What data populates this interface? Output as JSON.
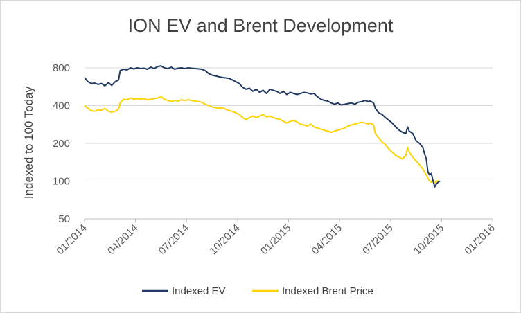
{
  "chart_data": {
    "type": "line",
    "title": "ION EV and Brent Development",
    "ylabel": "Indexed to 100 Today",
    "xlabel": "",
    "y_scale": "log",
    "ylim": [
      50,
      1000
    ],
    "yticks": [
      50,
      100,
      200,
      400,
      800
    ],
    "x_range_months": [
      0,
      24
    ],
    "x_tick_labels": [
      {
        "m": 0,
        "label": "01/2014"
      },
      {
        "m": 3,
        "label": "04/2014"
      },
      {
        "m": 6,
        "label": "07/2014"
      },
      {
        "m": 9,
        "label": "10/2014"
      },
      {
        "m": 12,
        "label": "01/2015"
      },
      {
        "m": 15,
        "label": "04/2015"
      },
      {
        "m": 18,
        "label": "07/2015"
      },
      {
        "m": 21,
        "label": "10/2015"
      },
      {
        "m": 24,
        "label": "01/2016"
      }
    ],
    "x_unit": "months since 01/2014",
    "grid": true,
    "legend_position": "bottom",
    "series": [
      {
        "name": "Indexed EV",
        "color": "#1f3864",
        "points": [
          [
            0.0,
            670
          ],
          [
            0.2,
            620
          ],
          [
            0.4,
            600
          ],
          [
            0.6,
            605
          ],
          [
            0.8,
            590
          ],
          [
            1.0,
            600
          ],
          [
            1.2,
            575
          ],
          [
            1.4,
            610
          ],
          [
            1.6,
            580
          ],
          [
            1.8,
            620
          ],
          [
            2.0,
            640
          ],
          [
            2.1,
            760
          ],
          [
            2.3,
            780
          ],
          [
            2.5,
            770
          ],
          [
            2.7,
            800
          ],
          [
            2.9,
            785
          ],
          [
            3.1,
            800
          ],
          [
            3.3,
            790
          ],
          [
            3.5,
            795
          ],
          [
            3.7,
            780
          ],
          [
            3.9,
            810
          ],
          [
            4.1,
            790
          ],
          [
            4.3,
            820
          ],
          [
            4.5,
            830
          ],
          [
            4.7,
            800
          ],
          [
            4.9,
            790
          ],
          [
            5.1,
            810
          ],
          [
            5.3,
            780
          ],
          [
            5.5,
            795
          ],
          [
            5.7,
            800
          ],
          [
            5.9,
            790
          ],
          [
            6.1,
            800
          ],
          [
            6.3,
            795
          ],
          [
            6.5,
            790
          ],
          [
            6.7,
            785
          ],
          [
            6.9,
            780
          ],
          [
            7.1,
            760
          ],
          [
            7.3,
            720
          ],
          [
            7.5,
            700
          ],
          [
            7.7,
            690
          ],
          [
            7.9,
            680
          ],
          [
            8.1,
            670
          ],
          [
            8.3,
            665
          ],
          [
            8.5,
            660
          ],
          [
            8.7,
            640
          ],
          [
            8.9,
            620
          ],
          [
            9.1,
            600
          ],
          [
            9.3,
            560
          ],
          [
            9.5,
            540
          ],
          [
            9.7,
            550
          ],
          [
            9.9,
            520
          ],
          [
            10.1,
            540
          ],
          [
            10.3,
            510
          ],
          [
            10.5,
            530
          ],
          [
            10.7,
            500
          ],
          [
            10.9,
            540
          ],
          [
            11.1,
            530
          ],
          [
            11.3,
            520
          ],
          [
            11.5,
            500
          ],
          [
            11.7,
            520
          ],
          [
            11.9,
            490
          ],
          [
            12.1,
            510
          ],
          [
            12.3,
            500
          ],
          [
            12.5,
            490
          ],
          [
            12.7,
            500
          ],
          [
            12.9,
            510
          ],
          [
            13.1,
            505
          ],
          [
            13.3,
            495
          ],
          [
            13.5,
            500
          ],
          [
            13.7,
            470
          ],
          [
            13.9,
            450
          ],
          [
            14.1,
            440
          ],
          [
            14.3,
            435
          ],
          [
            14.5,
            420
          ],
          [
            14.7,
            410
          ],
          [
            14.9,
            420
          ],
          [
            15.1,
            405
          ],
          [
            15.3,
            410
          ],
          [
            15.5,
            415
          ],
          [
            15.7,
            420
          ],
          [
            15.9,
            410
          ],
          [
            16.1,
            425
          ],
          [
            16.3,
            430
          ],
          [
            16.5,
            440
          ],
          [
            16.7,
            430
          ],
          [
            16.8,
            435
          ],
          [
            17.0,
            420
          ],
          [
            17.1,
            380
          ],
          [
            17.3,
            350
          ],
          [
            17.5,
            340
          ],
          [
            17.7,
            320
          ],
          [
            17.9,
            305
          ],
          [
            18.1,
            290
          ],
          [
            18.3,
            270
          ],
          [
            18.5,
            255
          ],
          [
            18.7,
            245
          ],
          [
            18.9,
            240
          ],
          [
            19.0,
            270
          ],
          [
            19.1,
            250
          ],
          [
            19.3,
            240
          ],
          [
            19.5,
            210
          ],
          [
            19.7,
            200
          ],
          [
            19.9,
            185
          ],
          [
            20.0,
            165
          ],
          [
            20.1,
            150
          ],
          [
            20.2,
            118
          ],
          [
            20.3,
            112
          ],
          [
            20.4,
            115
          ],
          [
            20.5,
            100
          ],
          [
            20.6,
            90
          ],
          [
            20.7,
            95
          ],
          [
            20.8,
            98
          ],
          [
            20.9,
            100
          ]
        ]
      },
      {
        "name": "Indexed Brent Price",
        "color": "#ffd200",
        "points": [
          [
            0.0,
            400
          ],
          [
            0.2,
            380
          ],
          [
            0.4,
            365
          ],
          [
            0.6,
            360
          ],
          [
            0.8,
            370
          ],
          [
            1.0,
            368
          ],
          [
            1.2,
            380
          ],
          [
            1.4,
            360
          ],
          [
            1.6,
            355
          ],
          [
            1.8,
            360
          ],
          [
            2.0,
            375
          ],
          [
            2.1,
            420
          ],
          [
            2.3,
            450
          ],
          [
            2.5,
            445
          ],
          [
            2.7,
            460
          ],
          [
            2.9,
            450
          ],
          [
            3.1,
            455
          ],
          [
            3.3,
            450
          ],
          [
            3.5,
            455
          ],
          [
            3.7,
            445
          ],
          [
            3.9,
            450
          ],
          [
            4.1,
            455
          ],
          [
            4.3,
            460
          ],
          [
            4.5,
            470
          ],
          [
            4.7,
            450
          ],
          [
            4.9,
            440
          ],
          [
            5.1,
            430
          ],
          [
            5.3,
            440
          ],
          [
            5.5,
            435
          ],
          [
            5.7,
            445
          ],
          [
            5.9,
            440
          ],
          [
            6.1,
            445
          ],
          [
            6.3,
            440
          ],
          [
            6.5,
            435
          ],
          [
            6.7,
            430
          ],
          [
            6.9,
            425
          ],
          [
            7.1,
            410
          ],
          [
            7.3,
            400
          ],
          [
            7.5,
            390
          ],
          [
            7.7,
            385
          ],
          [
            7.9,
            380
          ],
          [
            8.1,
            385
          ],
          [
            8.3,
            375
          ],
          [
            8.5,
            365
          ],
          [
            8.7,
            360
          ],
          [
            8.9,
            350
          ],
          [
            9.1,
            340
          ],
          [
            9.3,
            320
          ],
          [
            9.5,
            310
          ],
          [
            9.7,
            320
          ],
          [
            9.9,
            330
          ],
          [
            10.1,
            320
          ],
          [
            10.3,
            330
          ],
          [
            10.5,
            340
          ],
          [
            10.7,
            325
          ],
          [
            10.9,
            330
          ],
          [
            11.1,
            320
          ],
          [
            11.3,
            315
          ],
          [
            11.5,
            310
          ],
          [
            11.7,
            300
          ],
          [
            11.9,
            290
          ],
          [
            12.1,
            300
          ],
          [
            12.3,
            305
          ],
          [
            12.5,
            295
          ],
          [
            12.7,
            285
          ],
          [
            12.9,
            280
          ],
          [
            13.1,
            275
          ],
          [
            13.3,
            285
          ],
          [
            13.5,
            270
          ],
          [
            13.7,
            265
          ],
          [
            13.9,
            260
          ],
          [
            14.1,
            255
          ],
          [
            14.3,
            250
          ],
          [
            14.5,
            245
          ],
          [
            14.7,
            250
          ],
          [
            14.9,
            255
          ],
          [
            15.1,
            260
          ],
          [
            15.3,
            265
          ],
          [
            15.5,
            275
          ],
          [
            15.7,
            280
          ],
          [
            15.9,
            285
          ],
          [
            16.1,
            290
          ],
          [
            16.3,
            295
          ],
          [
            16.5,
            290
          ],
          [
            16.7,
            285
          ],
          [
            16.8,
            290
          ],
          [
            17.0,
            280
          ],
          [
            17.1,
            240
          ],
          [
            17.3,
            220
          ],
          [
            17.5,
            205
          ],
          [
            17.7,
            195
          ],
          [
            17.9,
            180
          ],
          [
            18.1,
            170
          ],
          [
            18.3,
            160
          ],
          [
            18.5,
            155
          ],
          [
            18.7,
            150
          ],
          [
            18.9,
            160
          ],
          [
            19.0,
            185
          ],
          [
            19.1,
            170
          ],
          [
            19.3,
            155
          ],
          [
            19.5,
            145
          ],
          [
            19.7,
            135
          ],
          [
            19.9,
            125
          ],
          [
            20.0,
            118
          ],
          [
            20.1,
            112
          ],
          [
            20.2,
            105
          ],
          [
            20.3,
            100
          ],
          [
            20.4,
            98
          ],
          [
            20.5,
            102
          ],
          [
            20.6,
            96
          ],
          [
            20.7,
            100
          ],
          [
            20.8,
            100
          ],
          [
            20.9,
            100
          ]
        ]
      }
    ]
  }
}
